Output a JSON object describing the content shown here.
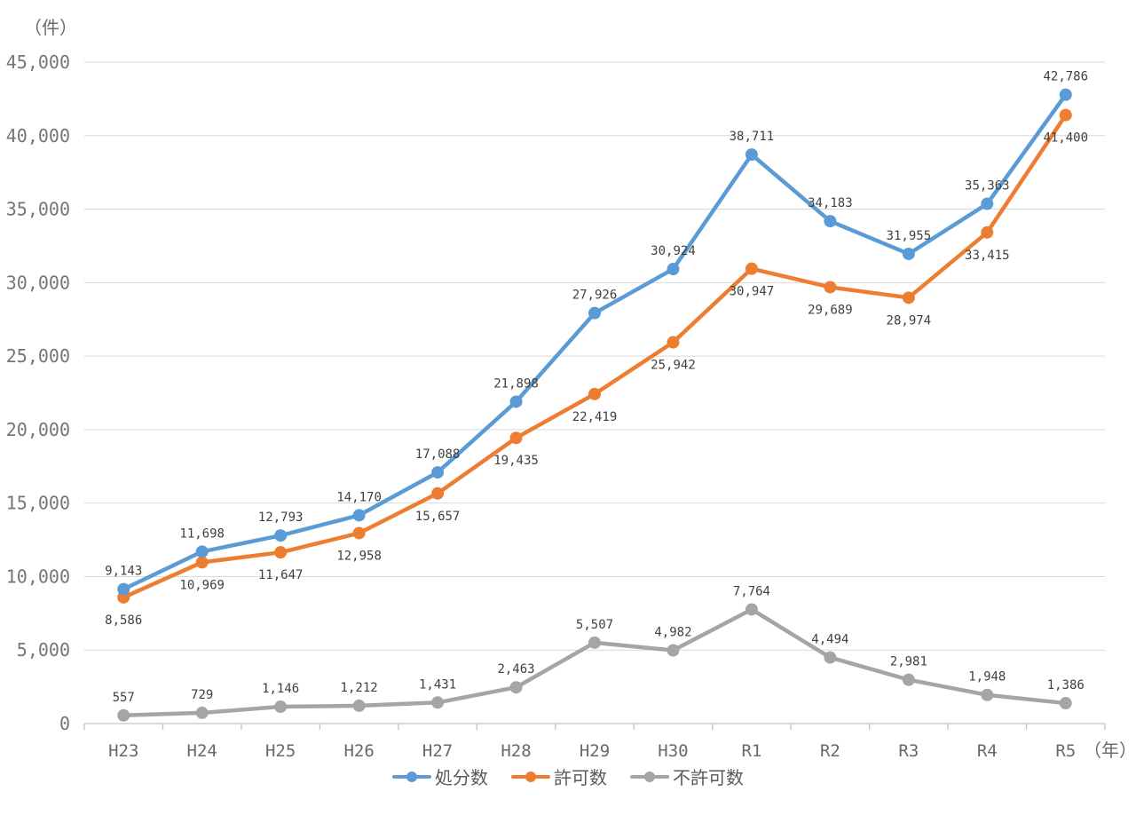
{
  "chart_data": {
    "type": "line",
    "title": "",
    "unit_label": "（件）",
    "year_label": "（年）",
    "categories": [
      "H23",
      "H24",
      "H25",
      "H26",
      "H27",
      "H28",
      "H29",
      "H30",
      "R1",
      "R2",
      "R3",
      "R4",
      "R5"
    ],
    "series": [
      {
        "key": "disposals",
        "name": "処分数",
        "color": "#5B9BD5",
        "label_position": "above",
        "values": [
          9143,
          11698,
          12793,
          14170,
          17088,
          21898,
          27926,
          30924,
          38711,
          34183,
          31955,
          35363,
          42786
        ]
      },
      {
        "key": "permits",
        "name": "許可数",
        "color": "#ED7D31",
        "label_position": "below",
        "values": [
          8586,
          10969,
          11647,
          12958,
          15657,
          19435,
          22419,
          25942,
          30947,
          29689,
          28974,
          33415,
          41400
        ]
      },
      {
        "key": "denials",
        "name": "不許可数",
        "color": "#A5A5A5",
        "label_position": "above",
        "values": [
          557,
          729,
          1146,
          1212,
          1431,
          2463,
          5507,
          4982,
          7764,
          4494,
          2981,
          1948,
          1386
        ]
      }
    ],
    "ylim": [
      0,
      45000
    ],
    "ytick_step": 5000,
    "ytick_labels": [
      "0",
      "5,000",
      "10,000",
      "15,000",
      "20,000",
      "25,000",
      "30,000",
      "35,000",
      "40,000",
      "45,000"
    ],
    "grid": "horizontal",
    "legend_position": "bottom",
    "styles": {
      "gridline_color": "#d9d9d9",
      "axis_color": "#c3c3c3",
      "tick_label_color": "#757575",
      "category_label_color": "#696969",
      "data_label_color": "#404040",
      "background": "#ffffff"
    }
  }
}
